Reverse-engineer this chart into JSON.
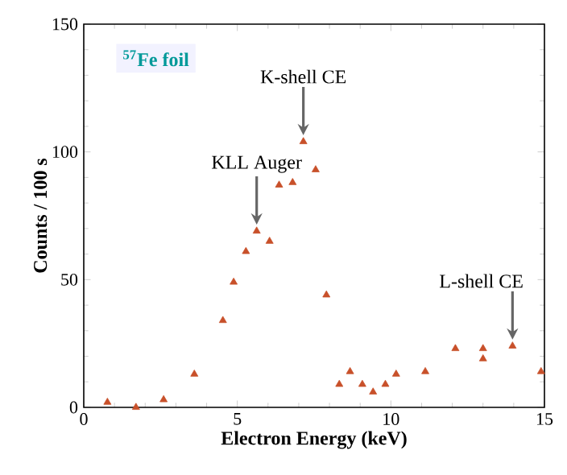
{
  "chart_data": {
    "type": "scatter",
    "xlabel": "Electron Energy (keV)",
    "ylabel": "Counts / 100 s",
    "xlim": [
      0,
      15
    ],
    "ylim": [
      0,
      150
    ],
    "xticks": [
      0,
      5,
      10,
      15
    ],
    "yticks": [
      0,
      50,
      100,
      150
    ],
    "marker": "triangle",
    "grid": false,
    "series": [
      {
        "color": "#c8502a",
        "x": [
          0.77,
          1.7,
          2.6,
          3.6,
          4.53,
          4.88,
          5.28,
          5.63,
          6.05,
          6.36,
          6.8,
          7.15,
          7.55,
          7.9,
          8.32,
          8.67,
          9.07,
          9.42,
          9.82,
          10.17,
          11.12,
          12.1,
          13.0,
          13.0,
          13.96,
          14.89
        ],
        "values": [
          2,
          0,
          3,
          13,
          34,
          49,
          61,
          69,
          65,
          87,
          88,
          104,
          93,
          44,
          9,
          14,
          9,
          6,
          9,
          13,
          14,
          23,
          23,
          19,
          24,
          14
        ]
      }
    ],
    "annotations": [
      "$^{57}$Fe foil",
      {
        "text": "KLL Auger",
        "x": 5.63,
        "y": 69
      },
      {
        "text": "K-shell CE",
        "x": 7.15,
        "y": 104
      },
      {
        "text": "L-shell CE",
        "x": 13.96,
        "y": 24
      }
    ]
  }
}
